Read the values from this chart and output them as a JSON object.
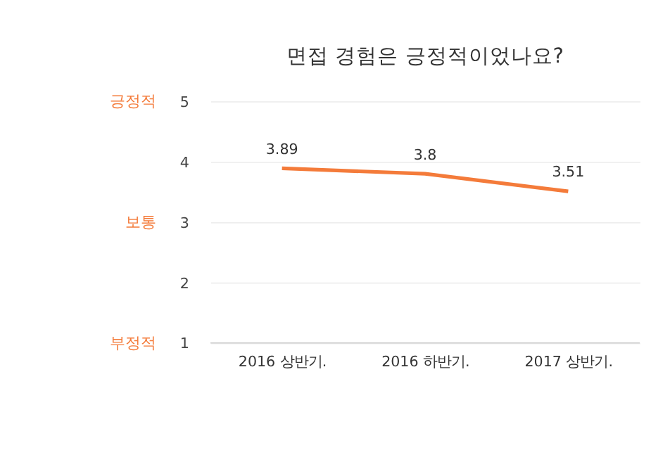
{
  "chart_data": {
    "type": "line",
    "title": "면접 경험은 긍정적이었나요?",
    "categories": [
      "2016 상반기.",
      "2016 하반기.",
      "2017 상반기."
    ],
    "series": [
      {
        "color": "#f47b3a",
        "values": [
          3.89,
          3.8,
          3.51
        ]
      }
    ],
    "ylim": [
      1,
      5
    ],
    "yticks": [
      1,
      2,
      3,
      4,
      5
    ],
    "grid": "y",
    "data_labels": true,
    "marker": "none",
    "line_style": "solid",
    "legend": false,
    "annotations": [
      "긍정적",
      "보통",
      "부정적"
    ]
  }
}
